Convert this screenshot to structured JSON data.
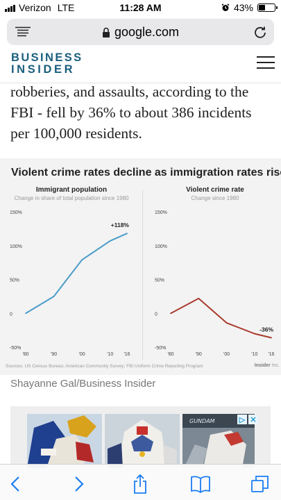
{
  "status_bar": {
    "carrier": "Verizon",
    "network": "LTE",
    "time": "11:28 AM",
    "battery_percent": "43%",
    "battery_level": 0.43
  },
  "url_bar": {
    "domain": "google.com",
    "icons": [
      "reader-menu-icon",
      "lock-icon",
      "reload-icon"
    ]
  },
  "site": {
    "brand_line1": "BUSINESS",
    "brand_line2": "INSIDER",
    "brand_color": "#1b5e7e"
  },
  "article": {
    "line1": "robberies, and assaults, according to the",
    "line2": "FBI - fell by 36% to about 386 incidents",
    "line3": "per 100,000 residents."
  },
  "figure": {
    "title": "Violent crime rates decline as immigration rates rise",
    "sources": "Sources: US Census Bureau; American Community Survey; FBI Uniform Crime Reporting Program",
    "logo_text": "Insider",
    "logo_suffix": "Inc.",
    "caption": "Shayanne Gal/Business Insider"
  },
  "chart_data": [
    {
      "type": "line",
      "title": "Immigrant population",
      "subtitle": "Change in share of total population since 1980",
      "x": [
        1980,
        1990,
        2000,
        2010,
        2016
      ],
      "x_tick_labels": [
        "'80",
        "'90",
        "'00",
        "'10",
        "'16"
      ],
      "series": [
        {
          "values": [
            0,
            25,
            79,
            107,
            118
          ],
          "color": "#4a9cc9"
        }
      ],
      "y_ticks": [
        150,
        100,
        50,
        0,
        -50
      ],
      "y_tick_labels": [
        "150%",
        "100%",
        "50%",
        "0",
        "-50%"
      ],
      "ylim": [
        -50,
        150
      ],
      "end_label": "+118%",
      "grid": false
    },
    {
      "type": "line",
      "title": "Violent crime rate",
      "subtitle": "Change since 1980",
      "x": [
        1980,
        1990,
        2000,
        2010,
        2016
      ],
      "x_tick_labels": [
        "'80",
        "'90",
        "'00",
        "'10",
        "'16"
      ],
      "series": [
        {
          "values": [
            0,
            22,
            -14,
            -30,
            -36
          ],
          "color": "#a93a2c"
        }
      ],
      "y_ticks": [
        150,
        100,
        50,
        0,
        -50
      ],
      "y_tick_labels": [
        "150%",
        "100%",
        "50%",
        "0",
        "-50%"
      ],
      "ylim": [
        -50,
        150
      ],
      "end_label": "-36%",
      "grid": false
    }
  ],
  "ad": {
    "adchoices": [
      "▷",
      "✕"
    ]
  },
  "toolbar": {
    "icons": [
      "back-icon",
      "forward-icon",
      "share-icon",
      "bookmarks-icon",
      "tabs-icon"
    ],
    "accent": "#1a7cf5"
  }
}
